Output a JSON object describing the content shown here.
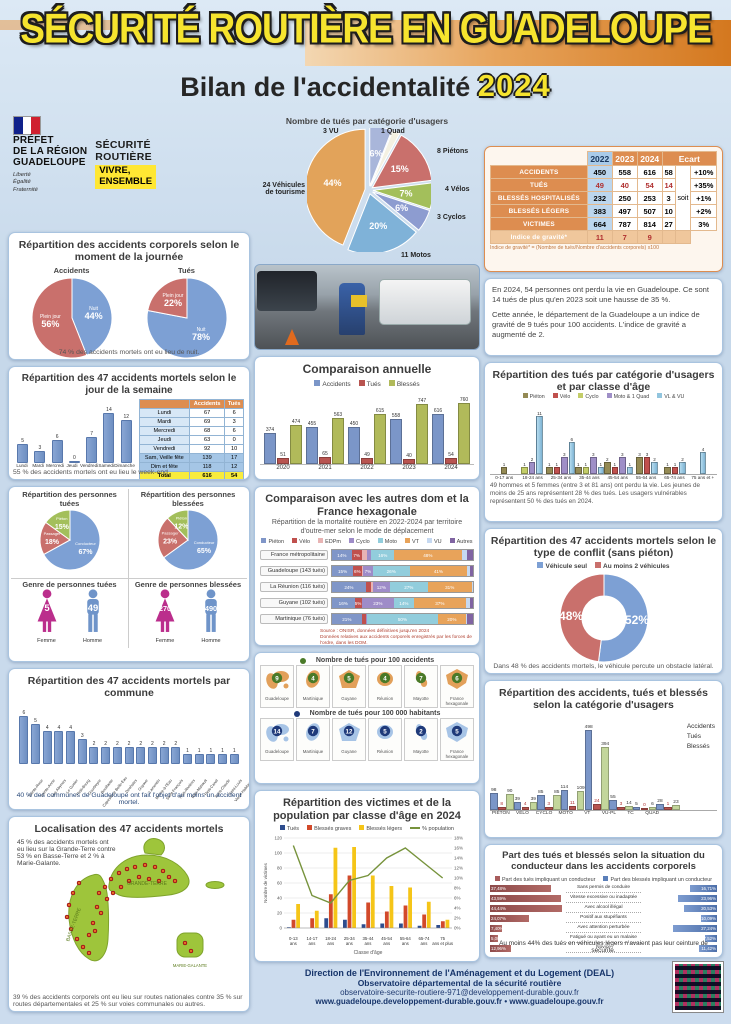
{
  "header": {
    "title": "Sécurité routière en Guadeloupe",
    "subtitle": "Bilan de l'accidentalité",
    "year": "2024"
  },
  "branding": {
    "prefet_lines": [
      "PRÉFET",
      "DE LA RÉGION",
      "GUADELOUPE"
    ],
    "motto": [
      "Liberté",
      "Égalité",
      "Fraternité"
    ],
    "securite_routiere": [
      "SÉCURITÉ",
      "ROUTIÈRE"
    ],
    "badge": [
      "VIVRE,",
      "ENSEMBLE"
    ]
  },
  "summary_table": {
    "years": [
      "2022",
      "2023",
      "2024"
    ],
    "ecart_label": "Ecart",
    "soit": "soit",
    "rows": [
      {
        "label": "ACCIDENTS",
        "v": [
          "450",
          "558",
          "616"
        ],
        "diff": "58",
        "pct": "+10%",
        "red": false
      },
      {
        "label": "TUÉS",
        "v": [
          "49",
          "40",
          "54"
        ],
        "diff": "14",
        "pct": "+35%",
        "red": true
      },
      {
        "label": "BLESSÉS HOSPITALISÉS",
        "v": [
          "232",
          "250",
          "253"
        ],
        "diff": "3",
        "pct": "+1%",
        "red": false
      },
      {
        "label": "BLESSÉS LÉGERS",
        "v": [
          "383",
          "497",
          "507"
        ],
        "diff": "10",
        "pct": "+2%",
        "red": false
      },
      {
        "label": "VICTIMES",
        "v": [
          "664",
          "787",
          "814"
        ],
        "diff": "27",
        "pct": "3%",
        "red": false
      },
      {
        "label": "Indice de gravité*",
        "v": [
          "11",
          "7",
          "9"
        ],
        "diff": "",
        "pct": "",
        "red": true,
        "ig": true
      }
    ],
    "footnote": "Indice de gravité* = (Nombre de tués/Nombre d'accidents corporels) x100"
  },
  "summary_text": {
    "p1": "En 2024, 54 personnes ont perdu la vie en Guadeloupe. Ce sont 14 tués de plus qu'en 2023 soit une hausse de 35 %.",
    "p2": "Cette année, le département de la Guadeloupe a un indice de gravité de 9 tués pour 100 accidents. L'indice de gravité a augmenté de 2."
  },
  "panels": {
    "moment": {
      "title": "Répartition des accidents corporels selon le moment de la journée",
      "left_label": "Accidents",
      "right_label": "Tués",
      "note": "74 % des accidents mortels ont eu lieu de nuit."
    },
    "personnes": {
      "t3": "Genre de personnes tuées",
      "t4": "Genre de personnes blessées",
      "femme": "Femme",
      "homme": "Homme"
    },
    "localisation": {
      "title": "Localisation des 47 accidents mortels",
      "text_top": "45 % des accidents mortels ont eu lieu sur la Grande-Terre contre 53 % en Basse-Terre et 2 % à Marie-Galante.",
      "text_bottom": "39 % des accidents corporels ont eu lieu sur routes nationales contre 35 % sur routes départementales et 25 % sur voies communales ou autres.",
      "labels": [
        "GRANDE-TERRE",
        "BASSE-TERRE",
        "MARIE-GALANTE"
      ]
    },
    "maps": {
      "t1": "Nombre de tués pour 100 accidents",
      "t2": "Nombre de tués pour 100 000 habitants"
    }
  },
  "footer": {
    "l1": "Direction de l'Environnement de l'Aménagement et du Logement (DEAL)",
    "l2": "Observatoire départemental de la sécurité routière",
    "l3": "observatoire-securite-routiere-971@developpement-durable.gouv.fr",
    "l4": "www.guadeloupe.developpement-durable.gouv.fr • www.guadeloupe.gouv.fr"
  },
  "chart_data": [
    {
      "type": "pie",
      "title": "Nombre de tués par catégorie d'usagers",
      "slices": [
        {
          "label": "3 VU",
          "pct": 6
        },
        {
          "label": "1 Quad",
          "pct": 2
        },
        {
          "label": "8 Piétons",
          "pct": 15
        },
        {
          "label": "4 Vélos",
          "pct": 7
        },
        {
          "label": "3 Cyclos",
          "pct": 6
        },
        {
          "label": "11 Motos",
          "pct": 20
        },
        {
          "label": "24 Véhicules de tourisme",
          "pct": 44
        }
      ],
      "colors": [
        "#a9b6da",
        "#f4f1e2",
        "#c9706c",
        "#a3bf5b",
        "#8d9cd0",
        "#7fb2d8",
        "#e2a35a"
      ]
    },
    {
      "type": "pie",
      "title": "Accidents",
      "slices": [
        {
          "label": "Nuit",
          "pct": 44
        },
        {
          "label": "Plein jour",
          "pct": 56
        }
      ],
      "colors": [
        "#7da0d4",
        "#c9706c"
      ]
    },
    {
      "type": "pie",
      "title": "Tués",
      "slices": [
        {
          "label": "Nuit",
          "pct": 78
        },
        {
          "label": "Plein jour",
          "pct": 22
        }
      ],
      "colors": [
        "#7da0d4",
        "#c9706c"
      ]
    },
    {
      "type": "bar",
      "title": "Répartition des 47 accidents mortels selon le jour de la semaine",
      "categories": [
        "Lundi",
        "Mardi",
        "Mercredi",
        "Jeudi",
        "Vendredi",
        "Samedi",
        "Dimanche"
      ],
      "values": [
        5,
        3,
        6,
        0,
        7,
        14,
        12
      ],
      "table": {
        "headers": [
          "",
          "Accidents",
          "Tués"
        ],
        "rows": [
          [
            "Lundi",
            "67",
            "6"
          ],
          [
            "Mardi",
            "69",
            "3"
          ],
          [
            "Mercredi",
            "68",
            "6"
          ],
          [
            "Jeudi",
            "63",
            "0"
          ],
          [
            "Vendredi",
            "92",
            "10"
          ],
          [
            "Sam, Veille fête",
            "139",
            "17"
          ],
          [
            "Dim et fête",
            "118",
            "12"
          ],
          [
            "Total",
            "616",
            "54"
          ]
        ],
        "weekend_rows": [
          5,
          6
        ]
      },
      "note": "55 % des accidents mortels ont eu lieu le week-end"
    },
    {
      "type": "pie",
      "title": "Répartition des personnes tuées",
      "slices": [
        {
          "label": "Conducteur",
          "pct": 67
        },
        {
          "label": "Passager",
          "pct": 18
        },
        {
          "label": "Piéton",
          "pct": 15
        }
      ],
      "colors": [
        "#7da0d4",
        "#c9706c",
        "#a3bf5b"
      ]
    },
    {
      "type": "pie",
      "title": "Répartition des personnes blessées",
      "slices": [
        {
          "label": "Conducteur",
          "pct": 65
        },
        {
          "label": "Passager",
          "pct": 23
        },
        {
          "label": "Piéton",
          "pct": 12
        }
      ],
      "colors": [
        "#7da0d4",
        "#c9706c",
        "#a3bf5b"
      ]
    },
    {
      "type": "pictogram",
      "title": "Genre de personnes tuées",
      "items": [
        {
          "label": "Femme",
          "value": "5"
        },
        {
          "label": "Homme",
          "value": "49"
        }
      ]
    },
    {
      "type": "pictogram",
      "title": "Genre de personnes blessées",
      "items": [
        {
          "label": "Femme",
          "value": "270"
        },
        {
          "label": "Homme",
          "value": "490"
        }
      ]
    },
    {
      "type": "bar",
      "title": "Répartition des 47 accidents mortels par commune",
      "categories": [
        "Sainte-Rose",
        "Sainte-Anne",
        "Les Abymes",
        "Le Gosier",
        "Petit-Bourg",
        "Gourbeyre",
        "Bouillante",
        "Capesterre Belle-Eau",
        "Deshaies",
        "Goyave",
        "Lamentin",
        "Morne-à-l'Eau",
        "Saint-François",
        "Trois-Rivières",
        "Baie-Mahault",
        "Petit-Canal",
        "Saint-Claude",
        "Saint-Louis",
        "Vieux-Habitants"
      ],
      "values": [
        6,
        5,
        4,
        4,
        4,
        3,
        2,
        2,
        2,
        2,
        2,
        2,
        2,
        2,
        1,
        1,
        1,
        1,
        1
      ],
      "note": "40 % des communes de Guadeloupe ont fait l'objet d'au moins un accident mortel."
    },
    {
      "type": "bar",
      "title": "Comparaison annuelle",
      "categories": [
        "2020",
        "2021",
        "2022",
        "2023",
        "2024"
      ],
      "series": [
        {
          "name": "Accidents",
          "values": [
            374,
            455,
            450,
            558,
            616
          ]
        },
        {
          "name": "Tués",
          "values": [
            51,
            65,
            49,
            40,
            54
          ]
        },
        {
          "name": "Blessés",
          "values": [
            474,
            563,
            615,
            747,
            760
          ]
        }
      ],
      "colors": [
        "#7b96c8",
        "#b85450",
        "#b1ba5a"
      ],
      "ylim": [
        0,
        800
      ]
    },
    {
      "type": "bar",
      "title": "Comparaison avec les autres dom et la France hexagonale",
      "subtitle": "Répartition de la mortalité routière en 2022-2024 par territoire d'outre-mer selon le mode de déplacement",
      "legend": [
        "Piéton",
        "Vélo",
        "EDPm",
        "Cyclo",
        "Moto",
        "VT",
        "VU",
        "Autres"
      ],
      "colors": [
        "#8096c8",
        "#c0504d",
        "#e8b4b4",
        "#9e8cc8",
        "#92cddc",
        "#e8a35a",
        "#c6d9f1",
        "#8064a2"
      ],
      "rows": [
        {
          "label": "France métropolitaine",
          "values": [
            14,
            7,
            4,
            3,
            16,
            48,
            4,
            4
          ]
        },
        {
          "label": "Guadeloupe (143 tués)",
          "values": [
            15,
            6,
            1,
            7,
            26,
            41,
            2,
            2
          ]
        },
        {
          "label": "La Réunion (116 tués)",
          "values": [
            24,
            4,
            1,
            12,
            27,
            31,
            1,
            0
          ]
        },
        {
          "label": "Guyane (102 tués)",
          "values": [
            16,
            5,
            0,
            23,
            14,
            37,
            3,
            2
          ]
        },
        {
          "label": "Martinique (76 tués)",
          "values": [
            21,
            3,
            0,
            1,
            50,
            20,
            1,
            4
          ]
        }
      ],
      "source": [
        "Source : ONISR, données définitives jusqu'en 2024",
        "Données relatives aux accidents corporels enregistrés par les forces de l'ordre, dans les DOM."
      ]
    },
    {
      "type": "map-badges",
      "title": "Nombre de tués pour 100 accidents",
      "items": [
        {
          "label": "Guadeloupe",
          "value": "9"
        },
        {
          "label": "Martinique",
          "value": "4"
        },
        {
          "label": "Guyane",
          "value": "5"
        },
        {
          "label": "Réunion",
          "value": "4"
        },
        {
          "label": "Mayotte",
          "value": "7"
        },
        {
          "label": "France hexagonale",
          "value": "6"
        }
      ],
      "island_color": "#e2a05a",
      "badge_color": "#4a7a28"
    },
    {
      "type": "map-badges",
      "title": "Nombre de tués pour 100 000 habitants",
      "items": [
        {
          "label": "Guadeloupe",
          "value": "14"
        },
        {
          "label": "Martinique",
          "value": "7"
        },
        {
          "label": "Guyane",
          "value": "12"
        },
        {
          "label": "Réunion",
          "value": "5"
        },
        {
          "label": "Mayotte",
          "value": "2"
        },
        {
          "label": "France hexagonale",
          "value": "5"
        }
      ],
      "island_color": "#a7c4e6",
      "badge_color": "#1f3a7a"
    },
    {
      "type": "bar",
      "title": "Répartition des victimes et de la population par classe d'âge en 2024",
      "categories": [
        "0-13 ans",
        "14-17 ans",
        "18-24 ans",
        "25-34 ans",
        "35-44 ans",
        "45-54 ans",
        "55-64 ans",
        "65-74 ans",
        "75 ans et plus"
      ],
      "series": [
        {
          "name": "Tués",
          "values": [
            1,
            0,
            13,
            11,
            5,
            6,
            6,
            3,
            4
          ]
        },
        {
          "name": "Blessés graves",
          "values": [
            11,
            13,
            45,
            70,
            34,
            22,
            30,
            18,
            9
          ]
        },
        {
          "name": "Blessés légers",
          "values": [
            32,
            23,
            107,
            108,
            70,
            56,
            54,
            35,
            11
          ]
        }
      ],
      "line": {
        "name": "% population",
        "values": [
          16.5,
          6.5,
          5,
          9.5,
          10.5,
          14,
          16,
          13,
          10
        ]
      },
      "colors": [
        "#2e4d8e",
        "#d2492a",
        "#f5c518"
      ],
      "line_color": "#77933c",
      "ylabel": "Nombre de victimes",
      "xlabel": "Classe d'âge",
      "ylim": [
        0,
        120
      ],
      "y2lim": [
        0,
        18
      ]
    },
    {
      "type": "bar",
      "title": "Répartition des tués par catégorie d'usagers et par classe d'âge",
      "categories": [
        "0-17 ans",
        "18-24 ans",
        "25-34 ans",
        "35-44 ans",
        "45-54 ans",
        "55-64 ans",
        "65-74 ans",
        "75 ans et +"
      ],
      "series": [
        {
          "name": "Piéton",
          "values": [
            1,
            0,
            1,
            1,
            2,
            3,
            1,
            0
          ]
        },
        {
          "name": "Vélo",
          "values": [
            0,
            0,
            1,
            0,
            1,
            3,
            1,
            0
          ]
        },
        {
          "name": "Cyclo",
          "values": [
            0,
            1,
            0,
            1,
            0,
            0,
            0,
            0
          ]
        },
        {
          "name": "Moto & 1 Quad",
          "values": [
            0,
            2,
            3,
            3,
            3,
            0,
            0,
            0
          ]
        },
        {
          "name": "VL & VU",
          "values": [
            0,
            11,
            6,
            1,
            1,
            2,
            2,
            4
          ]
        }
      ],
      "colors": [
        "#948a54",
        "#c0504d",
        "#c3cd68",
        "#9f8fc7",
        "#92c5de"
      ],
      "note": "49 hommes et 5 femmes (entre 3 et 81 ans) ont perdu la vie. Les jeunes de moins de 25 ans représentent 28 % des tués. Les usagers vulnérables représentent 50 % des tués en 2024."
    },
    {
      "type": "pie",
      "title": "Répartition des 47 accidents mortels selon le type de conflit (sans piéton)",
      "donut": true,
      "slices": [
        {
          "label": "Véhicule seul",
          "pct": 52
        },
        {
          "label": "Au moins 2 véhicules",
          "pct": 48
        }
      ],
      "colors": [
        "#7da0d4",
        "#c9706c"
      ],
      "note": "Dans 48 % des accidents mortels, le véhicule percute un obstacle latéral."
    },
    {
      "type": "bar",
      "title": "Répartition des accidents, tués et blessés selon la catégorie d'usagers",
      "categories": [
        "PIÉTON",
        "VÉLO",
        "CYCLO",
        "MOTO",
        "VT",
        "VU-PL",
        "TC",
        "QUAD"
      ],
      "series": [
        {
          "name": "Accidents",
          "values": [
            98,
            39,
            85,
            114,
            498,
            55,
            5,
            28
          ]
        },
        {
          "name": "Tués",
          "values": [
            8,
            4,
            3,
            11,
            24,
            3,
            0,
            1
          ]
        },
        {
          "name": "Blessés",
          "values": [
            90,
            39,
            85,
            109,
            394,
            14,
            6,
            23
          ]
        }
      ],
      "colors": [
        "#7b96c8",
        "#b85450",
        "#c3d69b"
      ],
      "ylim": [
        0,
        500
      ]
    },
    {
      "type": "bar",
      "title": "Part des tués et blessés selon la situation du conducteur dans les accidents corporels",
      "legend": [
        "Part des tués impliquant un conducteur",
        "Part des blessés impliquant un conducteur"
      ],
      "colors": [
        "#a85c5c",
        "#5b7fb9"
      ],
      "rows": [
        {
          "label": "Sans permis de conduire",
          "tues": 37.48,
          "blesses": 16.71
        },
        {
          "label": "Vitesse excessive ou inadaptée",
          "tues": 43.59,
          "blesses": 23.96
        },
        {
          "label": "Avec alcool illégal",
          "tues": 44.44,
          "blesses": 20.53
        },
        {
          "label": "Positif aux stupéfiants",
          "tues": 24.07,
          "blesses": 10.09
        },
        {
          "label": "Avec attention perturbée",
          "tues": 7.4,
          "blesses": 27.24
        },
        {
          "label": "Fatigué ou ayant eu un malaise",
          "tues": 5.0,
          "blesses": 7.52
        },
        {
          "label": "Novice",
          "tues": 12.96,
          "blesses": 11.42
        }
      ],
      "note": "Au moins 44% des tués en véhicules légers n'avaient pas leur ceinture de sécurité."
    }
  ]
}
